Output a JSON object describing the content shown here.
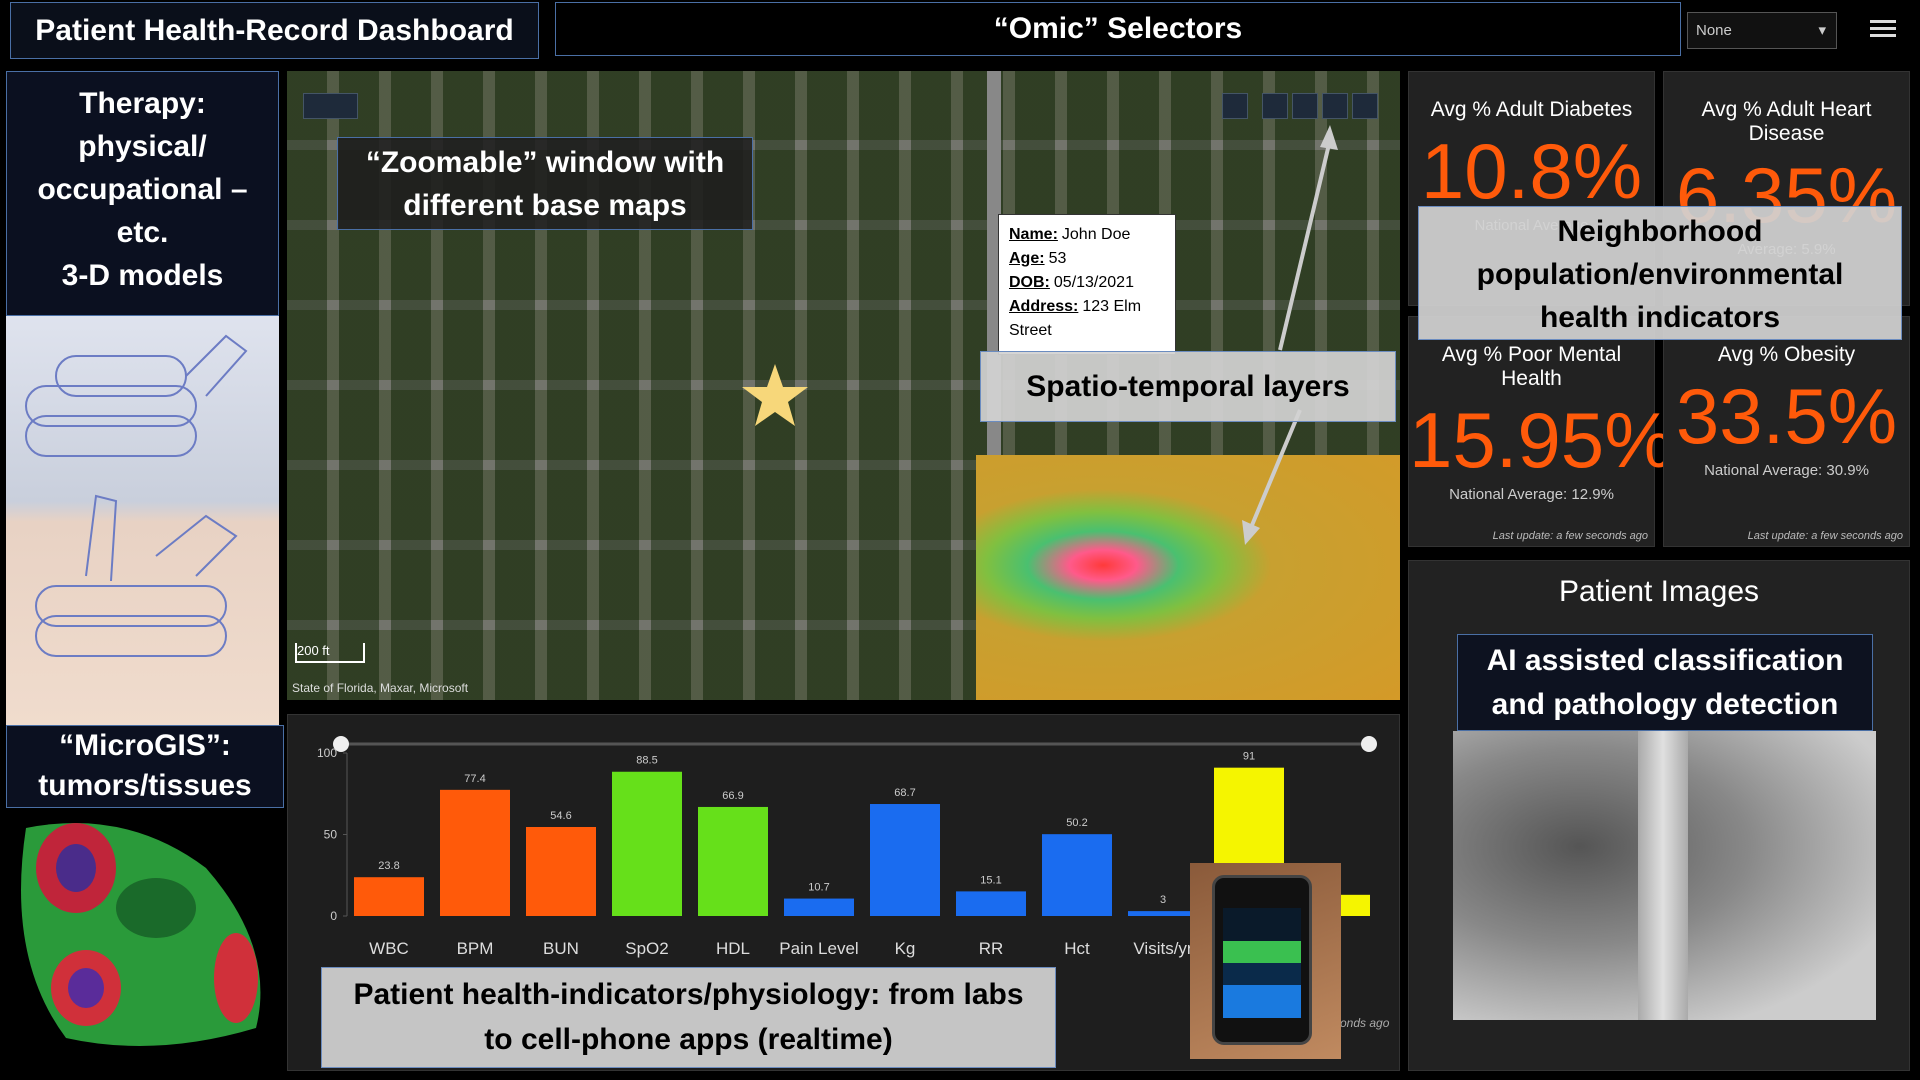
{
  "header": {
    "title": "Patient Health-Record Dashboard",
    "selectors_title": "“Omic” Selectors",
    "dropdown": "None"
  },
  "left": {
    "therapy_label": "Therapy:\nphysical/\noccupational –\netc.\n3-D models",
    "microgis_label": "“MicroGIS”:\ntumors/tissues"
  },
  "map": {
    "zoom_label": "“Zoomable” window with\ndifferent base maps",
    "layers_label": "Spatio-temporal layers",
    "scale": "200 ft",
    "attribution": "State of Florida, Maxar, Microsoft",
    "popup": [
      {
        "label": "Name:",
        "value": "John Doe"
      },
      {
        "label": "Age:",
        "value": "53"
      },
      {
        "label": "DOB:",
        "value": "05/13/2021"
      },
      {
        "label": "Address:",
        "value": "123 Elm\nStreet"
      }
    ]
  },
  "indicators": {
    "label": "Neighborhood\npopulation/environmental\nhealth indicators",
    "cards": [
      {
        "title": "Avg % Adult Diabetes",
        "value": "10.8%",
        "note": "National Average",
        "update": ""
      },
      {
        "title": "Avg % Adult Heart Disease",
        "value": "6.35%",
        "note": "Average: 5.9%",
        "update": ""
      },
      {
        "title": "Avg % Poor Mental Health",
        "value": "15.95%",
        "note": "National Average: 12.9%",
        "update": "Last update: a few seconds ago"
      },
      {
        "title": "Avg % Obesity",
        "value": "33.5%",
        "note": "National Average: 30.9%",
        "update": "Last update: a few seconds ago"
      }
    ]
  },
  "images": {
    "title": "Patient Images",
    "ai_label": "AI assisted classification\nand pathology detection"
  },
  "vitals": {
    "caption": "Patient health-indicators/physiology: from labs\nto cell-phone apps (realtime)",
    "update": "onds ago",
    "chart": {
      "type": "bar",
      "categories": [
        "WBC",
        "BPM",
        "BUN",
        "SpO2",
        "HDL",
        "Pain Level",
        "Kg",
        "RR",
        "Hct",
        "Visits/yr",
        null,
        null
      ],
      "values": [
        23.8,
        77.4,
        54.6,
        88.5,
        66.9,
        10.7,
        68.7,
        15.1,
        50.2,
        3,
        91,
        13
      ],
      "value_labels": [
        "23.8",
        "77.4",
        "54.6",
        "88.5",
        "66.9",
        "10.7",
        "68.7",
        "15.1",
        "50.2",
        "3",
        "91",
        null
      ],
      "colors": [
        "#ff5a0a",
        "#ff5a0a",
        "#ff5a0a",
        "#66e01a",
        "#66e01a",
        "#1a6cf0",
        "#1a6cf0",
        "#1a6cf0",
        "#1a6cf0",
        "#1a6cf0",
        "#f5f500",
        "#f5f500"
      ],
      "ylim": [
        0,
        100
      ],
      "yticks": [
        0,
        50,
        100
      ]
    }
  }
}
